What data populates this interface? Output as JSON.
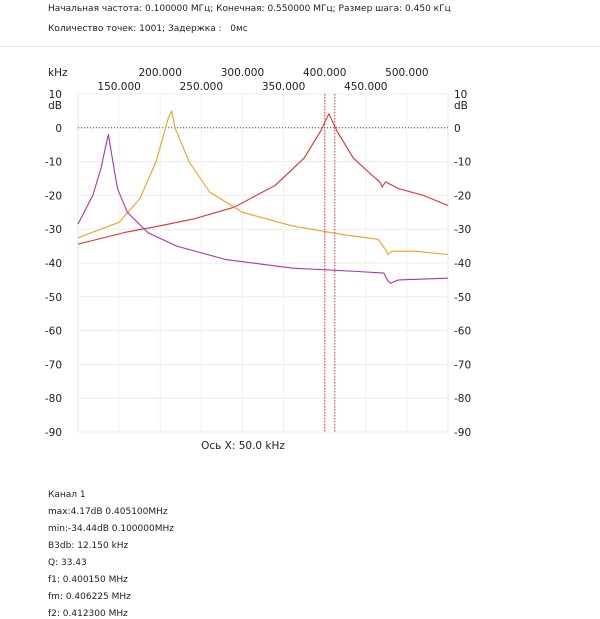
{
  "header": {
    "line1": "Начальная частота: 0.100000 МГц; Конечная: 0.550000 МГц; Размер шага: 0.450 кГц",
    "line2": "Количество точек: 1001; Задержка :   0мс"
  },
  "chart_data": {
    "type": "line",
    "x_unit_label": "kHz",
    "y_unit_label": "dB",
    "top_ticks_row1": [
      "200.000",
      "300.000",
      "400.000",
      "500.000"
    ],
    "top_ticks_row2": [
      "150.000",
      "250.000",
      "350.000",
      "450.000"
    ],
    "y_ticks": [
      10,
      0,
      -10,
      -20,
      -30,
      -40,
      -50,
      -60,
      -70,
      -80,
      -90
    ],
    "ylim": [
      -90,
      10
    ],
    "xlim": [
      100,
      550
    ],
    "xlabel": "Ось X: 50.0 kHz",
    "reference_level": 0,
    "markers_khz": [
      400.15,
      412.3
    ],
    "series": [
      {
        "color": "#e03030",
        "points": [
          [
            100,
            -34.4
          ],
          [
            160,
            -30.8
          ],
          [
            200,
            -29
          ],
          [
            240,
            -27
          ],
          [
            290,
            -23.5
          ],
          [
            340,
            -17
          ],
          [
            375,
            -9
          ],
          [
            395,
            -1
          ],
          [
            405.1,
            4.17
          ],
          [
            415,
            -1
          ],
          [
            435,
            -9
          ],
          [
            455,
            -13.5
          ],
          [
            467,
            -16
          ],
          [
            470,
            -17.5
          ],
          [
            474,
            -16
          ],
          [
            490,
            -18
          ],
          [
            520,
            -20
          ],
          [
            550,
            -23
          ]
        ]
      },
      {
        "color": "#f0a020",
        "points": [
          [
            100,
            -32.5
          ],
          [
            150,
            -28
          ],
          [
            175,
            -21
          ],
          [
            195,
            -10
          ],
          [
            210,
            3
          ],
          [
            214,
            5
          ],
          [
            218,
            0
          ],
          [
            235,
            -10
          ],
          [
            260,
            -19
          ],
          [
            300,
            -25
          ],
          [
            360,
            -29
          ],
          [
            420,
            -31.5
          ],
          [
            465,
            -33
          ],
          [
            474,
            -36
          ],
          [
            477,
            -37.5
          ],
          [
            482,
            -36.5
          ],
          [
            510,
            -36.5
          ],
          [
            550,
            -37.5
          ]
        ]
      },
      {
        "color": "#b030b0",
        "points": [
          [
            100,
            -28.5
          ],
          [
            118,
            -20
          ],
          [
            128,
            -12
          ],
          [
            134,
            -5
          ],
          [
            137,
            -2
          ],
          [
            141,
            -8
          ],
          [
            148,
            -18
          ],
          [
            160,
            -25
          ],
          [
            185,
            -31
          ],
          [
            220,
            -35
          ],
          [
            280,
            -39
          ],
          [
            360,
            -41.5
          ],
          [
            440,
            -42.5
          ],
          [
            472,
            -43
          ],
          [
            476,
            -45
          ],
          [
            480,
            -46
          ],
          [
            490,
            -45
          ],
          [
            550,
            -44.5
          ]
        ]
      }
    ]
  },
  "info": {
    "channel": "Канал 1",
    "max": "max:4.17dB 0.405100MHz",
    "min": "min:-34.44dB 0.100000MHz",
    "b3db": "B3db: 12.150 kHz",
    "q": "Q: 33.43",
    "f1": "f1: 0.400150 MHz",
    "fm": "fm: 0.406225 MHz",
    "f2": "f2: 0.412300 MHz"
  }
}
